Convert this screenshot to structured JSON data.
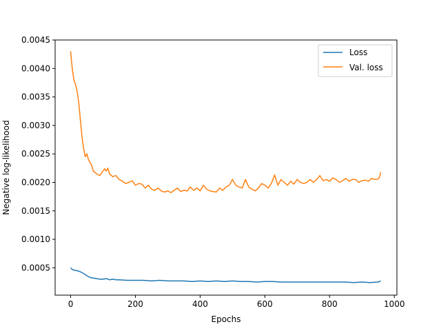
{
  "chart_data": {
    "type": "line",
    "title": "",
    "xlabel": "Epochs",
    "ylabel": "Negative log-likelihood",
    "xlim": [
      -48,
      1008
    ],
    "ylim": [
      2e-05,
      0.0045
    ],
    "x_ticks": [
      0,
      200,
      400,
      600,
      800,
      1000
    ],
    "x_tick_labels": [
      "0",
      "200",
      "400",
      "600",
      "800",
      "1000"
    ],
    "y_ticks": [
      0.0005,
      0.001,
      0.0015,
      0.002,
      0.0025,
      0.003,
      0.0035,
      0.004,
      0.0045
    ],
    "y_tick_labels": [
      "0.0005",
      "0.0010",
      "0.0015",
      "0.0020",
      "0.0025",
      "0.0030",
      "0.0035",
      "0.0040",
      "0.0045"
    ],
    "grid": false,
    "legend_position": "top-right",
    "series": [
      {
        "name": "Loss",
        "color": "#1f77b4",
        "x": [
          0,
          5,
          10,
          20,
          30,
          40,
          50,
          60,
          70,
          80,
          90,
          100,
          110,
          120,
          130,
          140,
          150,
          175,
          200,
          225,
          250,
          275,
          300,
          325,
          350,
          375,
          400,
          425,
          450,
          475,
          500,
          525,
          550,
          575,
          600,
          625,
          650,
          675,
          700,
          725,
          750,
          775,
          800,
          825,
          850,
          875,
          900,
          925,
          950,
          958
        ],
        "y": [
          0.0005,
          0.00047,
          0.00046,
          0.00045,
          0.00043,
          0.0004,
          0.00036,
          0.00033,
          0.00032,
          0.00031,
          0.0003,
          0.0003,
          0.00031,
          0.00029,
          0.0003,
          0.00029,
          0.00029,
          0.00028,
          0.00028,
          0.00028,
          0.00027,
          0.00028,
          0.00027,
          0.00027,
          0.00027,
          0.00026,
          0.00027,
          0.00026,
          0.00027,
          0.00026,
          0.00027,
          0.00026,
          0.00026,
          0.00025,
          0.00026,
          0.00026,
          0.00025,
          0.00025,
          0.00025,
          0.00025,
          0.00025,
          0.00025,
          0.00025,
          0.00025,
          0.00025,
          0.00024,
          0.00025,
          0.00024,
          0.00025,
          0.00027
        ]
      },
      {
        "name": "Val. loss",
        "color": "#ff7f0e",
        "x": [
          0,
          3,
          6,
          10,
          15,
          20,
          25,
          30,
          35,
          40,
          45,
          50,
          55,
          60,
          65,
          70,
          80,
          90,
          100,
          105,
          110,
          115,
          120,
          130,
          140,
          150,
          160,
          170,
          180,
          190,
          200,
          210,
          220,
          230,
          240,
          250,
          260,
          270,
          280,
          290,
          300,
          310,
          320,
          330,
          340,
          350,
          360,
          370,
          380,
          390,
          400,
          410,
          420,
          430,
          440,
          450,
          460,
          470,
          480,
          490,
          500,
          510,
          520,
          530,
          540,
          550,
          560,
          570,
          580,
          590,
          600,
          610,
          620,
          630,
          640,
          650,
          660,
          670,
          680,
          690,
          700,
          710,
          720,
          730,
          740,
          750,
          760,
          770,
          780,
          790,
          800,
          810,
          820,
          830,
          840,
          850,
          860,
          870,
          880,
          890,
          900,
          910,
          920,
          930,
          940,
          950,
          955,
          958
        ],
        "y": [
          0.0043,
          0.0041,
          0.00395,
          0.0038,
          0.00372,
          0.0036,
          0.0034,
          0.0031,
          0.0028,
          0.0026,
          0.00245,
          0.0025,
          0.0024,
          0.00235,
          0.0023,
          0.0022,
          0.00215,
          0.00212,
          0.0022,
          0.00224,
          0.0022,
          0.00225,
          0.00215,
          0.0021,
          0.00212,
          0.00205,
          0.00202,
          0.00198,
          0.002,
          0.00203,
          0.00195,
          0.00198,
          0.00197,
          0.0019,
          0.00195,
          0.00188,
          0.00186,
          0.0019,
          0.00185,
          0.00183,
          0.00185,
          0.00182,
          0.00186,
          0.0019,
          0.00184,
          0.00186,
          0.00185,
          0.00192,
          0.00186,
          0.0019,
          0.00185,
          0.00195,
          0.00188,
          0.00185,
          0.00184,
          0.00183,
          0.0019,
          0.00186,
          0.00192,
          0.00195,
          0.00205,
          0.00195,
          0.00192,
          0.0019,
          0.00205,
          0.00192,
          0.00188,
          0.00185,
          0.0019,
          0.00198,
          0.00195,
          0.0019,
          0.00198,
          0.00213,
          0.00195,
          0.00205,
          0.002,
          0.00195,
          0.00202,
          0.00197,
          0.00205,
          0.002,
          0.00198,
          0.002,
          0.00205,
          0.002,
          0.00205,
          0.00212,
          0.00203,
          0.00205,
          0.00202,
          0.00208,
          0.00205,
          0.002,
          0.00203,
          0.00207,
          0.00202,
          0.00205,
          0.00205,
          0.002,
          0.00203,
          0.00204,
          0.00202,
          0.00207,
          0.00205,
          0.00206,
          0.0021,
          0.00218
        ]
      }
    ]
  }
}
